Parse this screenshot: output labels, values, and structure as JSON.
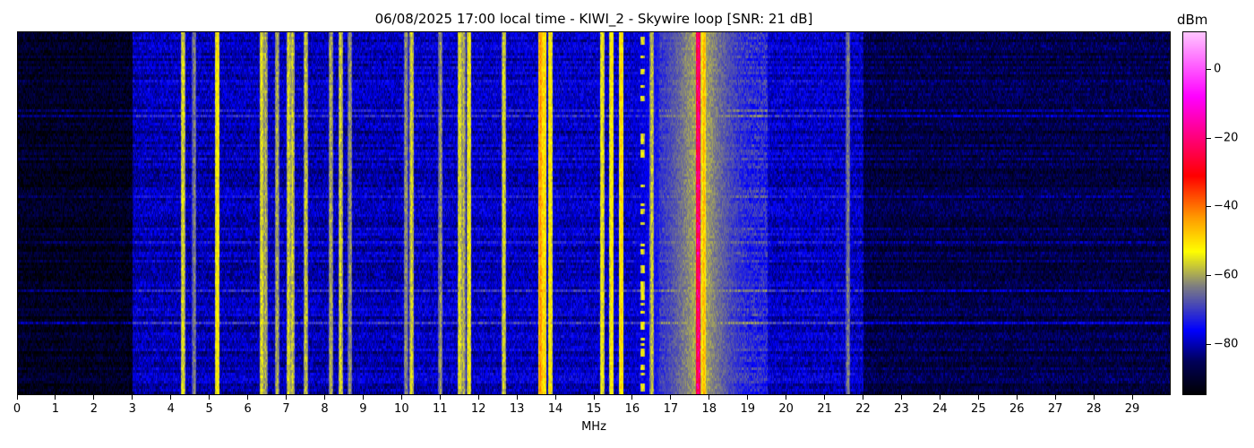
{
  "chart_data": {
    "type": "heatmap",
    "title": "06/08/2025 17:00 local time - KIWI_2 - Skywire loop [SNR: 21 dB]",
    "xlabel": "MHz",
    "xlim": [
      0,
      30
    ],
    "xticks": [
      0,
      1,
      2,
      3,
      4,
      5,
      6,
      7,
      8,
      9,
      10,
      11,
      12,
      13,
      14,
      15,
      16,
      17,
      18,
      19,
      20,
      21,
      22,
      23,
      24,
      25,
      26,
      27,
      28,
      29
    ],
    "colorbar": {
      "label": "dBm",
      "range": [
        -95,
        11
      ],
      "ticks": [
        0,
        -20,
        -40,
        -60,
        -80
      ]
    },
    "colormap": [
      {
        "v": -95,
        "c": "#000000"
      },
      {
        "v": -85,
        "c": "#00005a"
      },
      {
        "v": -76,
        "c": "#0000ff"
      },
      {
        "v": -63,
        "c": "#808080"
      },
      {
        "v": -53,
        "c": "#ffff00"
      },
      {
        "v": -43,
        "c": "#ff9900"
      },
      {
        "v": -31,
        "c": "#ff0000"
      },
      {
        "v": -8,
        "c": "#ff00ff"
      },
      {
        "v": 11,
        "c": "#ffc8ff"
      }
    ],
    "noise_floor": [
      {
        "from": 0,
        "to": 3,
        "dbm": -91
      },
      {
        "from": 3,
        "to": 10,
        "dbm": -80
      },
      {
        "from": 10,
        "to": 16.7,
        "dbm": -79
      },
      {
        "from": 16.7,
        "to": 19.5,
        "dbm": -72
      },
      {
        "from": 19.5,
        "to": 22,
        "dbm": -79
      },
      {
        "from": 22,
        "to": 30,
        "dbm": -87
      }
    ],
    "signals": [
      {
        "mhz": 4.3,
        "dbm": -54
      },
      {
        "mhz": 4.6,
        "dbm": -62
      },
      {
        "mhz": 5.2,
        "dbm": -50
      },
      {
        "mhz": 6.35,
        "dbm": -54
      },
      {
        "mhz": 6.45,
        "dbm": -58
      },
      {
        "mhz": 6.75,
        "dbm": -58
      },
      {
        "mhz": 7.05,
        "dbm": -55
      },
      {
        "mhz": 7.15,
        "dbm": -56
      },
      {
        "mhz": 7.5,
        "dbm": -56
      },
      {
        "mhz": 8.15,
        "dbm": -58
      },
      {
        "mhz": 8.4,
        "dbm": -55
      },
      {
        "mhz": 8.65,
        "dbm": -60
      },
      {
        "mhz": 10.1,
        "dbm": -60
      },
      {
        "mhz": 10.25,
        "dbm": -55
      },
      {
        "mhz": 11.0,
        "dbm": -60
      },
      {
        "mhz": 11.5,
        "dbm": -54
      },
      {
        "mhz": 11.6,
        "dbm": -58
      },
      {
        "mhz": 11.75,
        "dbm": -52
      },
      {
        "mhz": 12.65,
        "dbm": -55
      },
      {
        "mhz": 13.6,
        "dbm": -42
      },
      {
        "mhz": 13.7,
        "dbm": -48
      },
      {
        "mhz": 13.85,
        "dbm": -50
      },
      {
        "mhz": 15.2,
        "dbm": -52
      },
      {
        "mhz": 15.45,
        "dbm": -50
      },
      {
        "mhz": 15.7,
        "dbm": -48
      },
      {
        "mhz": 16.25,
        "dbm": -52,
        "intermittent": true
      },
      {
        "mhz": 16.5,
        "dbm": -56
      },
      {
        "mhz": 17.7,
        "dbm": -20
      },
      {
        "mhz": 17.85,
        "dbm": -45
      },
      {
        "mhz": 21.6,
        "dbm": -62
      }
    ]
  }
}
